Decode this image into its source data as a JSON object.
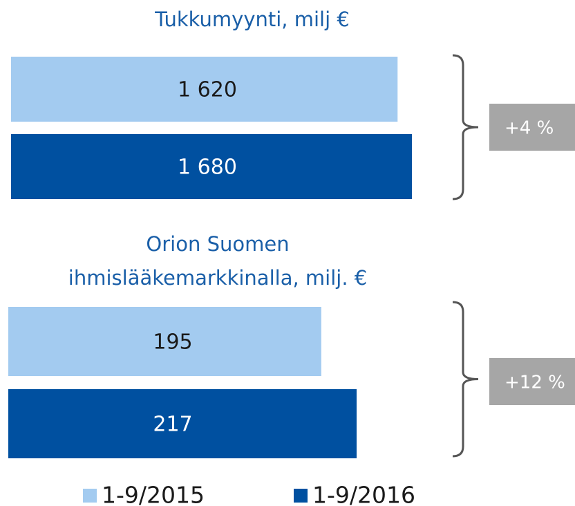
{
  "chart_data": [
    {
      "type": "bar",
      "orientation": "horizontal",
      "title": [
        "Tukkumyynti, milj €"
      ],
      "series": [
        {
          "name": "1-9/2015",
          "color": "#a3cbf0",
          "values": [
            1620
          ],
          "value_labels": [
            "1 620"
          ]
        },
        {
          "name": "1-9/2016",
          "color": "#0050a0",
          "values": [
            1680
          ],
          "value_labels": [
            "1 680"
          ]
        }
      ],
      "annotation": "+4 %"
    },
    {
      "type": "bar",
      "orientation": "horizontal",
      "title": [
        "Orion Suomen",
        "ihmislääkemarkkinalla, milj. €"
      ],
      "series": [
        {
          "color": "#a3cbf0",
          "values": [
            195
          ],
          "value_labels": [
            "195"
          ]
        },
        {
          "color": "#0050a0",
          "values": [
            217
          ],
          "value_labels": [
            "217"
          ]
        }
      ],
      "annotation": "+12 %"
    }
  ]
}
